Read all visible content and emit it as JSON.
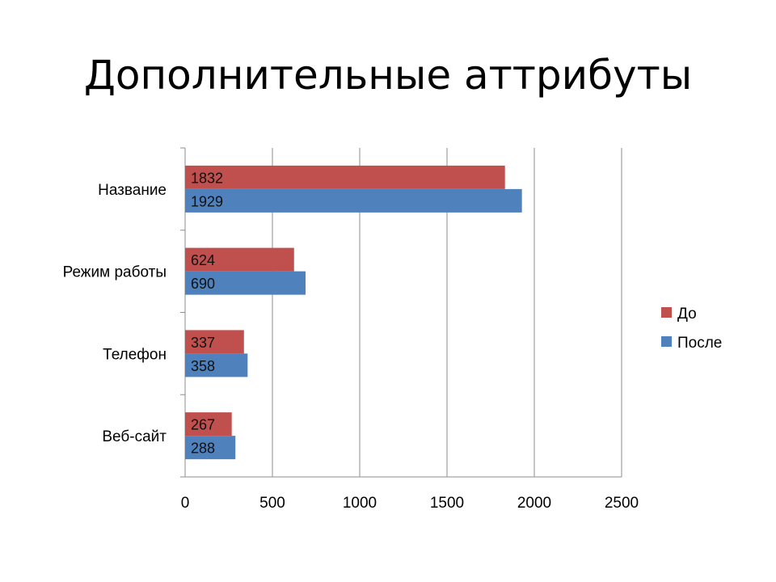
{
  "slide": {
    "title": "Дополнительные аттрибуты"
  },
  "chart_data": {
    "type": "bar",
    "orientation": "horizontal",
    "categories": [
      "Название",
      "Режим работы",
      "Телефон",
      "Веб-сайт"
    ],
    "series": [
      {
        "name": "До",
        "color": "#C0504D",
        "values": [
          1832,
          624,
          337,
          267
        ]
      },
      {
        "name": "После",
        "color": "#4F81BD",
        "values": [
          1929,
          690,
          358,
          288
        ]
      }
    ],
    "xlim": [
      0,
      2500
    ],
    "xticks": [
      0,
      500,
      1000,
      1500,
      2000,
      2500
    ],
    "grid": true,
    "legend": "right",
    "data_labels": true
  }
}
